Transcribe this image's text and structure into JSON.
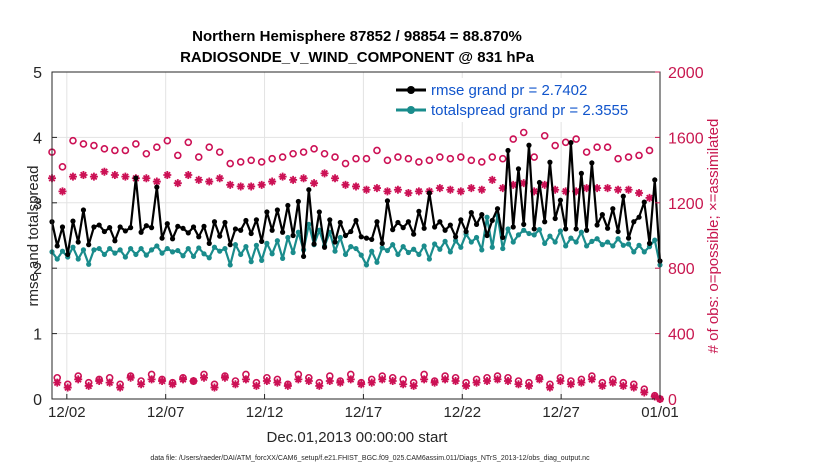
{
  "chart_data": {
    "type": "line",
    "title": "Northern Hemisphere 87852 / 98854 = 88.870%",
    "subtitle": "RADIOSONDE_V_WIND_COMPONENT @ 831 hPa",
    "xlabel": "Dec.01,2013 00:00:00 start",
    "ylabel_left": "rmse and totalspread",
    "ylabel_right": "# of obs: o=possible; ×=assimilated",
    "footnote": "data file: /Users/raeder/DAI/ATM_forcXX/CAM6_setup/f.e21.FHIST_BGC.f09_025.CAM6assim.011/Diags_NTrS_2013-12/obs_diag_output.nc",
    "x_tick_labels": [
      "12/02",
      "12/07",
      "12/12",
      "12/17",
      "12/22",
      "12/27",
      "01/01"
    ],
    "x_tick_values": [
      2,
      7,
      12,
      17,
      22,
      27,
      32
    ],
    "xlim": [
      1.25,
      32.0
    ],
    "ylim_left": [
      0,
      5
    ],
    "yticks_left": [
      0,
      1,
      2,
      3,
      4,
      5
    ],
    "ylim_right": [
      0,
      2000
    ],
    "yticks_right": [
      0,
      400,
      800,
      1200,
      1600,
      2000
    ],
    "grid": true,
    "legend_position": "top-right",
    "series": [
      {
        "name": "rmse grand pr = 2.7402",
        "color": "#000000",
        "marker": "filled-circle",
        "axis": "left",
        "values": [
          2.71,
          2.34,
          2.63,
          2.21,
          2.72,
          2.4,
          2.89,
          2.36,
          2.63,
          2.66,
          2.56,
          2.62,
          2.42,
          2.63,
          2.57,
          2.62,
          3.38,
          2.55,
          2.65,
          2.62,
          3.24,
          2.46,
          2.68,
          2.45,
          2.64,
          2.61,
          2.54,
          2.63,
          2.48,
          2.64,
          2.38,
          2.71,
          2.49,
          2.7,
          2.36,
          2.6,
          2.58,
          2.73,
          2.53,
          2.74,
          2.41,
          2.86,
          2.58,
          2.89,
          2.55,
          2.96,
          2.5,
          3.02,
          2.18,
          3.2,
          2.37,
          2.86,
          2.32,
          2.74,
          2.4,
          2.7,
          2.5,
          2.56,
          2.73,
          2.48,
          2.46,
          2.44,
          2.71,
          2.38,
          3.03,
          2.59,
          2.7,
          2.62,
          2.71,
          2.52,
          2.87,
          2.61,
          3.15,
          2.63,
          2.71,
          2.58,
          2.66,
          2.48,
          2.74,
          2.56,
          2.85,
          2.67,
          2.82,
          2.5,
          2.73,
          2.91,
          2.47,
          3.8,
          2.63,
          3.52,
          2.67,
          3.88,
          2.6,
          3.31,
          2.71,
          3.62,
          2.76,
          3.04,
          2.6,
          3.92,
          2.6,
          3.45,
          2.58,
          3.61,
          2.66,
          2.82,
          2.61,
          2.91,
          2.56,
          3.1,
          2.46,
          2.71,
          2.78,
          3.01,
          2.38,
          3.35,
          2.11
        ]
      },
      {
        "name": "totalspread grand pr = 2.3555",
        "color": "#1a8c8c",
        "marker": "filled-circle",
        "axis": "left",
        "values": [
          2.25,
          2.14,
          2.26,
          2.17,
          2.32,
          2.14,
          2.28,
          2.06,
          2.28,
          2.3,
          2.21,
          2.3,
          2.23,
          2.28,
          2.17,
          2.3,
          2.21,
          2.3,
          2.2,
          2.28,
          2.34,
          2.23,
          2.3,
          2.25,
          2.27,
          2.19,
          2.3,
          2.18,
          2.31,
          2.22,
          2.16,
          2.32,
          2.26,
          2.3,
          2.05,
          2.36,
          2.21,
          2.33,
          2.1,
          2.35,
          2.12,
          2.38,
          2.22,
          2.42,
          2.15,
          2.47,
          2.24,
          2.55,
          2.28,
          2.67,
          2.36,
          2.58,
          2.34,
          2.55,
          2.26,
          2.47,
          2.21,
          2.33,
          2.3,
          2.2,
          2.05,
          2.26,
          2.09,
          2.31,
          2.27,
          2.36,
          2.21,
          2.33,
          2.24,
          2.29,
          2.21,
          2.34,
          2.14,
          2.37,
          2.29,
          2.41,
          2.25,
          2.42,
          2.32,
          2.52,
          2.4,
          2.47,
          2.28,
          2.78,
          2.32,
          2.81,
          2.3,
          2.6,
          2.4,
          2.51,
          2.58,
          2.53,
          2.51,
          2.59,
          2.38,
          2.49,
          2.4,
          2.57,
          2.34,
          2.46,
          2.4,
          2.55,
          2.34,
          2.41,
          2.45,
          2.36,
          2.4,
          2.34,
          2.45,
          2.35,
          2.37,
          2.25,
          2.35,
          2.25,
          2.33,
          2.43,
          2.05
        ]
      },
      {
        "name": "possible",
        "color": "#cc1155",
        "marker": "open-circle",
        "axis": "right",
        "values": [
          1510,
          130,
          1420,
          90,
          1580,
          140,
          1560,
          100,
          1550,
          120,
          1530,
          130,
          1520,
          90,
          1520,
          140,
          1560,
          110,
          1500,
          150,
          1540,
          120,
          1580,
          100,
          1490,
          130,
          1570,
          110,
          1480,
          150,
          1540,
          90,
          1510,
          140,
          1440,
          110,
          1450,
          150,
          1460,
          100,
          1450,
          130,
          1470,
          120,
          1480,
          90,
          1500,
          150,
          1510,
          130,
          1530,
          100,
          1500,
          140,
          1480,
          110,
          1440,
          150,
          1470,
          100,
          1470,
          120,
          1520,
          140,
          1460,
          130,
          1480,
          120,
          1470,
          100,
          1450,
          150,
          1460,
          110,
          1480,
          140,
          1470,
          130,
          1480,
          100,
          1460,
          120,
          1450,
          130,
          1480,
          140,
          1470,
          130,
          1590,
          110,
          1630,
          100,
          1480,
          130,
          1610,
          90,
          1550,
          130,
          1570,
          110,
          1590,
          120,
          1510,
          140,
          1540,
          100,
          1540,
          120,
          1470,
          100,
          1480,
          90,
          1490,
          60,
          1520,
          20,
          0
        ]
      },
      {
        "name": "assimilated",
        "color": "#cc1155",
        "marker": "star",
        "axis": "right",
        "values": [
          1350,
          100,
          1270,
          70,
          1360,
          120,
          1370,
          80,
          1360,
          110,
          1390,
          100,
          1370,
          70,
          1360,
          130,
          1350,
          90,
          1350,
          120,
          1330,
          110,
          1370,
          90,
          1320,
          120,
          1370,
          110,
          1340,
          130,
          1330,
          70,
          1350,
          130,
          1310,
          90,
          1300,
          120,
          1300,
          80,
          1310,
          110,
          1330,
          100,
          1360,
          80,
          1340,
          120,
          1350,
          110,
          1320,
          80,
          1380,
          110,
          1350,
          100,
          1310,
          120,
          1300,
          90,
          1280,
          100,
          1290,
          120,
          1270,
          110,
          1280,
          90,
          1260,
          80,
          1270,
          120,
          1270,
          100,
          1290,
          120,
          1280,
          110,
          1270,
          80,
          1290,
          100,
          1280,
          110,
          1340,
          120,
          1290,
          110,
          1310,
          90,
          1320,
          80,
          1270,
          120,
          1310,
          70,
          1280,
          110,
          1270,
          90,
          1270,
          100,
          1290,
          120,
          1290,
          80,
          1290,
          100,
          1280,
          80,
          1280,
          70,
          1260,
          40,
          1230,
          15,
          0
        ]
      }
    ]
  }
}
